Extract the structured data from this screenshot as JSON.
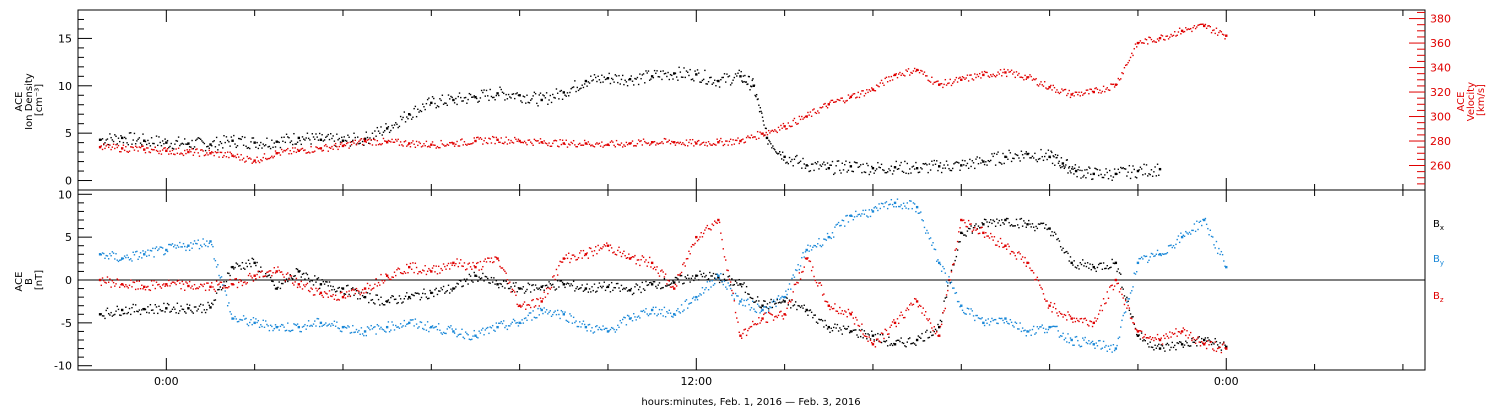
{
  "chart_data": [
    {
      "type": "scatter",
      "panel": "top",
      "ylabel_lines": [
        "ACE",
        "Ion Density",
        "[cm⁻³]"
      ],
      "yticks": [
        0,
        5,
        10,
        15
      ],
      "ylim": [
        -1,
        18
      ],
      "y2label_lines": [
        "ACE",
        "Velocity",
        "[km/s]"
      ],
      "y2ticks": [
        260,
        280,
        300,
        320,
        340,
        360,
        380
      ],
      "y2lim": [
        240,
        387
      ],
      "series": [
        {
          "color": "#000000",
          "axis": "left",
          "values_xy": [
            [
              -1.5,
              4.3
            ],
            [
              -1,
              4.5
            ],
            [
              -0.5,
              4.2
            ],
            [
              0,
              4.0
            ],
            [
              0.5,
              3.9
            ],
            [
              1,
              3.8
            ],
            [
              1.5,
              4.2
            ],
            [
              2,
              4.0
            ],
            [
              2.5,
              4.1
            ],
            [
              3,
              4.5
            ],
            [
              3.5,
              4.3
            ],
            [
              4,
              4.2
            ],
            [
              4.5,
              4.4
            ],
            [
              5,
              5.5
            ],
            [
              5.5,
              7.0
            ],
            [
              6,
              8.2
            ],
            [
              6.5,
              8.5
            ],
            [
              7,
              8.8
            ],
            [
              7.5,
              9.2
            ],
            [
              8,
              9.0
            ],
            [
              8.5,
              8.5
            ],
            [
              9,
              9.3
            ],
            [
              9.5,
              10.5
            ],
            [
              10,
              10.8
            ],
            [
              10.5,
              10.7
            ],
            [
              11,
              11.0
            ],
            [
              11.5,
              11.3
            ],
            [
              12,
              11.2
            ],
            [
              12.5,
              10.5
            ],
            [
              13,
              11.0
            ],
            [
              13.3,
              10.0
            ],
            [
              13.6,
              4.5
            ],
            [
              14,
              2.5
            ],
            [
              14.5,
              1.6
            ],
            [
              15,
              1.3
            ],
            [
              15.5,
              1.5
            ],
            [
              16,
              1.3
            ],
            [
              16.5,
              1.4
            ],
            [
              17,
              1.3
            ],
            [
              17.5,
              1.5
            ],
            [
              18,
              1.6
            ],
            [
              18.5,
              2.0
            ],
            [
              19,
              2.5
            ],
            [
              19.5,
              2.8
            ],
            [
              20,
              2.5
            ],
            [
              20.3,
              1.8
            ],
            [
              20.6,
              1.0
            ],
            [
              21,
              0.7
            ],
            [
              21.5,
              0.7
            ],
            [
              22,
              1.0
            ],
            [
              22.5,
              1.2
            ]
          ]
        },
        {
          "color": "#e00000",
          "axis": "right",
          "values_xy": [
            [
              -1.5,
              275
            ],
            [
              -1,
              274
            ],
            [
              -0.5,
              273
            ],
            [
              0,
              272
            ],
            [
              0.5,
              271
            ],
            [
              1,
              270
            ],
            [
              1.5,
              268
            ],
            [
              2,
              264
            ],
            [
              2.5,
              270
            ],
            [
              3,
              272
            ],
            [
              3.5,
              274
            ],
            [
              4,
              276
            ],
            [
              4.5,
              280
            ],
            [
              5,
              279
            ],
            [
              5.5,
              278
            ],
            [
              6,
              277
            ],
            [
              6.5,
              278
            ],
            [
              7,
              280
            ],
            [
              7.5,
              281
            ],
            [
              8,
              280
            ],
            [
              8.5,
              279
            ],
            [
              9,
              278
            ],
            [
              9.5,
              278
            ],
            [
              10,
              277
            ],
            [
              10.5,
              278
            ],
            [
              11,
              279
            ],
            [
              11.5,
              279
            ],
            [
              12,
              278
            ],
            [
              12.5,
              279
            ],
            [
              13,
              280
            ],
            [
              13.5,
              286
            ],
            [
              14,
              292
            ],
            [
              14.5,
              300
            ],
            [
              15,
              310
            ],
            [
              15.5,
              316
            ],
            [
              16,
              322
            ],
            [
              16.5,
              334
            ],
            [
              17,
              338
            ],
            [
              17.5,
              326
            ],
            [
              18,
              330
            ],
            [
              18.5,
              334
            ],
            [
              19,
              336
            ],
            [
              19.5,
              332
            ],
            [
              20,
              324
            ],
            [
              20.5,
              318
            ],
            [
              21,
              320
            ],
            [
              21.5,
              326
            ],
            [
              22,
              360
            ],
            [
              22.5,
              364
            ],
            [
              23,
              370
            ],
            [
              23.5,
              374
            ],
            [
              24,
              366
            ]
          ]
        }
      ]
    },
    {
      "type": "scatter",
      "panel": "bottom",
      "ylabel_lines": [
        "ACE",
        "B",
        "[nT]"
      ],
      "yticks": [
        -10,
        -5,
        0,
        5,
        10
      ],
      "ylim": [
        -10.5,
        10.5
      ],
      "zero_line": true,
      "series": [
        {
          "color": "#000000",
          "legend_label": [
            "B",
            "x"
          ],
          "values_xy": [
            [
              -1.5,
              -4.0
            ],
            [
              -1,
              -3.5
            ],
            [
              -0.5,
              -3.4
            ],
            [
              0,
              -3.3
            ],
            [
              0.5,
              -3.3
            ],
            [
              1,
              -3.2
            ],
            [
              1.5,
              1.5
            ],
            [
              2,
              2.0
            ],
            [
              2.5,
              -1.0
            ],
            [
              3,
              1.0
            ],
            [
              3.5,
              -0.5
            ],
            [
              4,
              -1.0
            ],
            [
              4.5,
              -2.0
            ],
            [
              5,
              -2.5
            ],
            [
              5.5,
              -2.0
            ],
            [
              6,
              -1.5
            ],
            [
              6.5,
              -1.0
            ],
            [
              7,
              0.5
            ],
            [
              7.5,
              -0.5
            ],
            [
              8,
              -1.0
            ],
            [
              8.5,
              -0.8
            ],
            [
              9,
              -0.5
            ],
            [
              9.5,
              -1.0
            ],
            [
              10,
              -0.8
            ],
            [
              10.5,
              -1.2
            ],
            [
              11,
              -0.5
            ],
            [
              11.5,
              -0.3
            ],
            [
              12,
              0.5
            ],
            [
              12.5,
              0.3
            ],
            [
              13,
              -0.5
            ],
            [
              13.5,
              -3.0
            ],
            [
              14,
              -2.5
            ],
            [
              14.5,
              -3.5
            ],
            [
              15,
              -5.5
            ],
            [
              15.5,
              -6.0
            ],
            [
              16,
              -6.5
            ],
            [
              16.5,
              -7.5
            ],
            [
              17,
              -7.0
            ],
            [
              17.5,
              -5.5
            ],
            [
              18,
              5.5
            ],
            [
              18.5,
              6.5
            ],
            [
              19,
              7.0
            ],
            [
              19.5,
              6.5
            ],
            [
              20,
              6.0
            ],
            [
              20.5,
              2.0
            ],
            [
              21,
              1.5
            ],
            [
              21.5,
              2.0
            ],
            [
              22,
              -6.5
            ],
            [
              22.5,
              -8.0
            ],
            [
              23,
              -7.5
            ],
            [
              23.5,
              -7.0
            ],
            [
              24,
              -7.8
            ]
          ]
        },
        {
          "color": "#1a88d8",
          "legend_label": [
            "B",
            "y"
          ],
          "values_xy": [
            [
              -1.5,
              3.0
            ],
            [
              -1,
              2.5
            ],
            [
              -0.5,
              3.0
            ],
            [
              0,
              3.5
            ],
            [
              0.5,
              4.0
            ],
            [
              1,
              4.5
            ],
            [
              1.5,
              -4.5
            ],
            [
              2,
              -5.0
            ],
            [
              2.5,
              -5.5
            ],
            [
              3,
              -5.5
            ],
            [
              3.5,
              -5.0
            ],
            [
              4,
              -5.5
            ],
            [
              4.5,
              -6.0
            ],
            [
              5,
              -5.5
            ],
            [
              5.5,
              -5.0
            ],
            [
              6,
              -5.5
            ],
            [
              6.5,
              -6.0
            ],
            [
              7,
              -6.5
            ],
            [
              7.5,
              -5.5
            ],
            [
              8,
              -5.0
            ],
            [
              8.5,
              -3.5
            ],
            [
              9,
              -4.0
            ],
            [
              9.5,
              -5.5
            ],
            [
              10,
              -6.0
            ],
            [
              10.5,
              -4.5
            ],
            [
              11,
              -3.5
            ],
            [
              11.5,
              -4.0
            ],
            [
              12,
              -2.0
            ],
            [
              12.5,
              0.5
            ],
            [
              13,
              -2.5
            ],
            [
              13.5,
              -3.5
            ],
            [
              14,
              -2.0
            ],
            [
              14.5,
              3.5
            ],
            [
              15,
              5.0
            ],
            [
              15.5,
              7.5
            ],
            [
              16,
              8.0
            ],
            [
              16.5,
              9.0
            ],
            [
              17,
              8.5
            ],
            [
              17.5,
              2.0
            ],
            [
              18,
              -3.0
            ],
            [
              18.5,
              -5.0
            ],
            [
              19,
              -4.5
            ],
            [
              19.5,
              -6.0
            ],
            [
              20,
              -5.5
            ],
            [
              20.5,
              -7.0
            ],
            [
              21,
              -7.5
            ],
            [
              21.5,
              -8.0
            ],
            [
              22,
              2.0
            ],
            [
              22.5,
              3.0
            ],
            [
              23,
              5.0
            ],
            [
              23.5,
              7.0
            ],
            [
              24,
              1.5
            ]
          ]
        },
        {
          "color": "#e00000",
          "legend_label": [
            "B",
            "z"
          ],
          "values_xy": [
            [
              -1.5,
              0.0
            ],
            [
              -1,
              -0.5
            ],
            [
              -0.5,
              -0.8
            ],
            [
              0,
              -0.5
            ],
            [
              0.5,
              -0.7
            ],
            [
              1,
              -0.8
            ],
            [
              1.5,
              -0.5
            ],
            [
              2,
              0.5
            ],
            [
              2.5,
              1.0
            ],
            [
              3,
              -0.5
            ],
            [
              3.5,
              -1.5
            ],
            [
              4,
              -2.0
            ],
            [
              4.5,
              -1.0
            ],
            [
              5,
              0.5
            ],
            [
              5.5,
              1.5
            ],
            [
              6,
              1.0
            ],
            [
              6.5,
              2.0
            ],
            [
              7,
              1.5
            ],
            [
              7.5,
              2.5
            ],
            [
              8,
              -3.0
            ],
            [
              8.5,
              -2.5
            ],
            [
              9,
              2.5
            ],
            [
              9.5,
              3.0
            ],
            [
              10,
              4.0
            ],
            [
              10.5,
              2.5
            ],
            [
              11,
              2.0
            ],
            [
              11.5,
              -1.0
            ],
            [
              12,
              5.0
            ],
            [
              12.5,
              7.0
            ],
            [
              13,
              -6.5
            ],
            [
              13.5,
              -4.5
            ],
            [
              14,
              -4.0
            ],
            [
              14.5,
              2.5
            ],
            [
              15,
              -3.0
            ],
            [
              15.5,
              -4.0
            ],
            [
              16,
              -7.5
            ],
            [
              16.5,
              -5.0
            ],
            [
              17,
              -2.5
            ],
            [
              17.5,
              -6.5
            ],
            [
              18,
              7.0
            ],
            [
              18.5,
              5.5
            ],
            [
              19,
              4.0
            ],
            [
              19.5,
              2.0
            ],
            [
              20,
              -3.0
            ],
            [
              20.5,
              -4.5
            ],
            [
              21,
              -5.0
            ],
            [
              21.5,
              0.0
            ],
            [
              22,
              -6.0
            ],
            [
              22.5,
              -7.0
            ],
            [
              23,
              -6.0
            ],
            [
              23.5,
              -7.5
            ],
            [
              24,
              -8.0
            ]
          ]
        }
      ]
    }
  ],
  "x_axis": {
    "xlim": [
      -2,
      28.5
    ],
    "tick_labels": [
      {
        "x": 0,
        "label": "0:00"
      },
      {
        "x": 12,
        "label": "12:00"
      },
      {
        "x": 24,
        "label": "0:00"
      }
    ],
    "minor_step_hours": 2,
    "xlabel": "hours:minutes, Feb.  1, 2016 — Feb.  3, 2016"
  }
}
